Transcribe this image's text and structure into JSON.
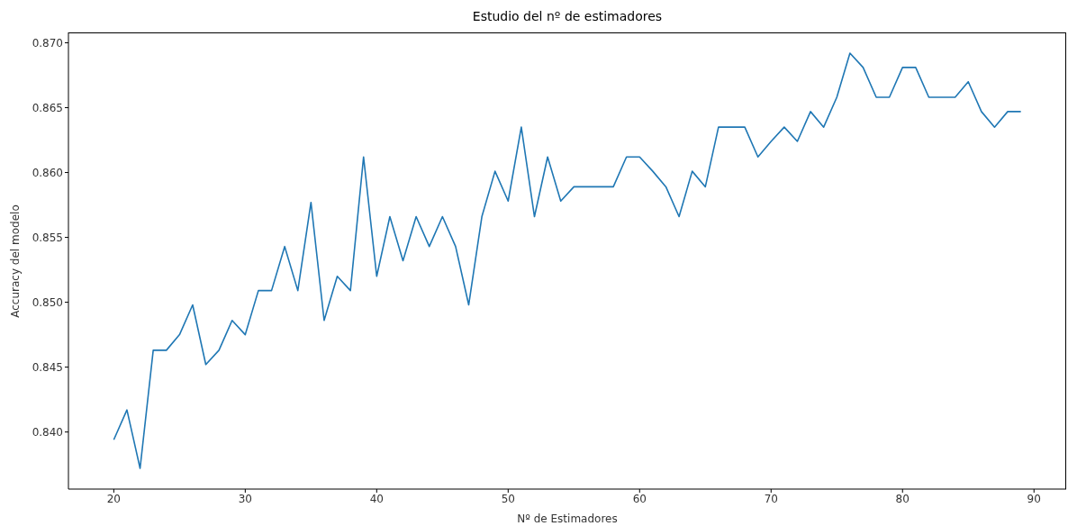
{
  "chart_data": {
    "type": "line",
    "title": "Estudio del nº de estimadores",
    "xlabel": "Nº de Estimadores",
    "ylabel": "Accuracy del modelo",
    "x": [
      20,
      21,
      22,
      23,
      24,
      25,
      26,
      27,
      28,
      29,
      30,
      31,
      32,
      33,
      34,
      35,
      36,
      37,
      38,
      39,
      40,
      41,
      42,
      43,
      44,
      45,
      46,
      47,
      48,
      49,
      50,
      51,
      52,
      53,
      54,
      55,
      56,
      57,
      58,
      59,
      60,
      61,
      62,
      63,
      64,
      65,
      66,
      67,
      68,
      69,
      70,
      71,
      72,
      73,
      74,
      75,
      76,
      77,
      78,
      79,
      80,
      81,
      82,
      83,
      84,
      85,
      86,
      87,
      88,
      89
    ],
    "series": [
      {
        "color": "#1f77b4",
        "values": [
          0.8394,
          0.8417,
          0.8372,
          0.8463,
          0.8463,
          0.8475,
          0.8498,
          0.8452,
          0.8463,
          0.8486,
          0.8475,
          0.8509,
          0.8509,
          0.8543,
          0.8509,
          0.8577,
          0.8486,
          0.852,
          0.8509,
          0.8612,
          0.852,
          0.8566,
          0.8532,
          0.8566,
          0.8543,
          0.8566,
          0.8543,
          0.8498,
          0.8566,
          0.8601,
          0.8578,
          0.8635,
          0.8566,
          0.8612,
          0.8578,
          0.8589,
          0.8589,
          0.8589,
          0.8589,
          0.8612,
          0.8612,
          0.8601,
          0.8589,
          0.8566,
          0.8601,
          0.8589,
          0.8635,
          0.8635,
          0.8635,
          0.8612,
          0.8624,
          0.8635,
          0.8624,
          0.8647,
          0.8635,
          0.8658,
          0.8692,
          0.8681,
          0.8658,
          0.8658,
          0.8681,
          0.8681,
          0.8658,
          0.8658,
          0.8658,
          0.867,
          0.8647,
          0.8635,
          0.8647,
          0.8647
        ]
      }
    ],
    "xlim": [
      16.55,
      92.45
    ],
    "xticks": [
      20,
      30,
      40,
      50,
      60,
      70,
      80,
      90
    ],
    "ylim": [
      0.8356,
      0.8708
    ],
    "yticks": [
      {
        "value": 0.84,
        "label": "0.840"
      },
      {
        "value": 0.845,
        "label": "0.845"
      },
      {
        "value": 0.85,
        "label": "0.850"
      },
      {
        "value": 0.855,
        "label": "0.855"
      },
      {
        "value": 0.86,
        "label": "0.860"
      },
      {
        "value": 0.865,
        "label": "0.865"
      },
      {
        "value": 0.87,
        "label": "0.870"
      }
    ],
    "grid": false,
    "legend": false,
    "marker": "none",
    "line_style": "solid"
  }
}
